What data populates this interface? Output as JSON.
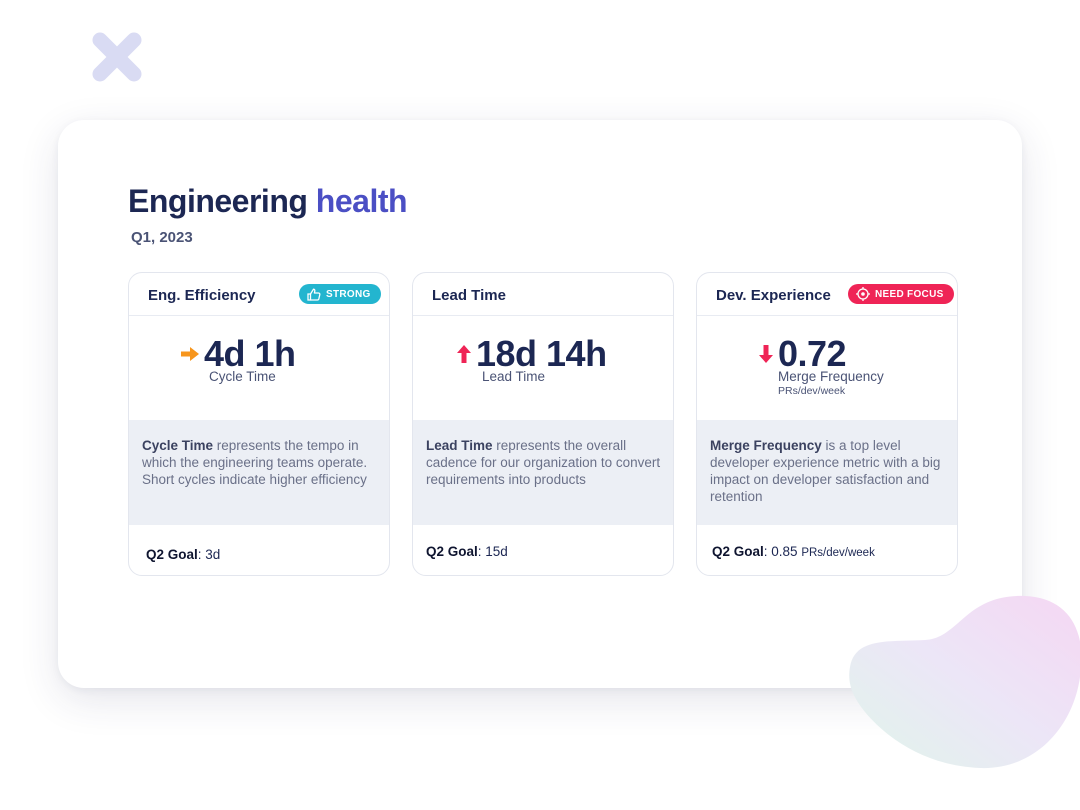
{
  "header": {
    "title_main": "Engineering",
    "title_accent": "health",
    "period": "Q1, 2023"
  },
  "colors": {
    "navy": "#1c2753",
    "accent": "#4b4fc4",
    "strong": "#23b5cf",
    "need_focus": "#ef2456",
    "arrow_neutral": "#f7961d",
    "arrow_up": "#ef2456",
    "arrow_down": "#ef2456"
  },
  "cards": [
    {
      "title": "Eng. Efficiency",
      "badge": "STRONG",
      "badge_icon": "thumbs-up-icon",
      "trend_icon": "arrow-right-icon",
      "value": "4d 1h",
      "label": "Cycle Time",
      "unit": "",
      "desc_term": "Cycle Time",
      "desc_text": " represents the tempo in which the engineering teams operate. Short cycles indicate higher efficiency",
      "goal_label": "Q2 Goal",
      "goal_value": "3d",
      "goal_unit": ""
    },
    {
      "title": "Lead Time",
      "badge": "",
      "trend_icon": "arrow-up-icon",
      "value": "18d 14h",
      "label": "Lead Time",
      "unit": "",
      "desc_term": "Lead Time",
      "desc_text": " represents the overall cadence for our organization to convert requirements into products",
      "goal_label": "Q2 Goal",
      "goal_value": "15d",
      "goal_unit": ""
    },
    {
      "title": "Dev. Experience",
      "badge": "NEED FOCUS",
      "badge_icon": "target-icon",
      "trend_icon": "arrow-down-icon",
      "value": "0.72",
      "label": "Merge Frequency",
      "unit": "PRs/dev/week",
      "desc_term": "Merge Frequency",
      "desc_text": " is a top level developer experience metric with a big impact on developer satisfaction and retention",
      "goal_label": "Q2 Goal",
      "goal_value": "0.85",
      "goal_unit": "PRs/dev/week"
    }
  ]
}
